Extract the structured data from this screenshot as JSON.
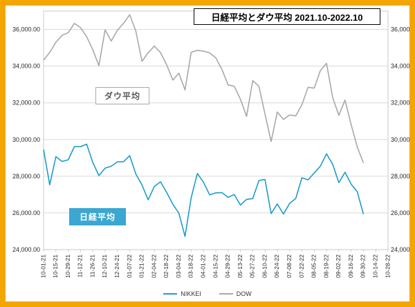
{
  "title": "日経平均とダウ平均 2021.10-2022.10",
  "series_labels": {
    "dow": "ダウ平均",
    "nikkei": "日経平均"
  },
  "colors": {
    "frame_border": "#F3A600",
    "nikkei_line": "#1E9CC8",
    "dow_line": "#A8A8A8",
    "nikkei_box_bg": "#3BA7D2",
    "nikkei_box_text": "#FFFFFF",
    "dow_box_text": "#595959",
    "dow_box_border": "#A8A8A8",
    "grid": "#D9D9D9",
    "plot_border": "#C9C9C9",
    "axis_text": "#262626"
  },
  "legend": {
    "items": [
      {
        "label": "NIKKEI",
        "color": "#1E9CC8"
      },
      {
        "label": "DOW",
        "color": "#A8A8A8"
      }
    ]
  },
  "chart_data": {
    "type": "line",
    "title": "日経平均とダウ平均 2021.10-2022.10",
    "xlabel": "",
    "ylabel": "",
    "grid": "horizontal",
    "legend_position": "bottom",
    "ylim": [
      24000,
      37000
    ],
    "y_ticks": [
      24000,
      26000,
      28000,
      30000,
      32000,
      34000,
      36000
    ],
    "y_tick_labels": [
      "24,000.00",
      "26,000.00",
      "28,000.00",
      "30,000.00",
      "32,000.00",
      "34,000.00",
      "36,000.00"
    ],
    "x_weeks_total": 56,
    "x_tick_labels": [
      "10-01-21",
      "10-15-21",
      "10-29-21",
      "11-12-21",
      "11-26-21",
      "12-10-21",
      "12-24-21",
      "01-07-22",
      "01-21-22",
      "02-04-22",
      "02-18-22",
      "03-04-22",
      "03-18-22",
      "04-01-22",
      "04-15-22",
      "04-29-22",
      "05-13-22",
      "05-27-22",
      "06-10-22",
      "06-24-22",
      "07-08-22",
      "07-22-22",
      "08-05-22",
      "08-19-22",
      "09-02-22",
      "09-16-22",
      "09-30-22",
      "10-14-22",
      "10-28-22"
    ],
    "series": [
      {
        "name": "NIKKEI",
        "color": "#1E9CC8",
        "values": [
          29452,
          27530,
          29069,
          28805,
          28893,
          29612,
          29610,
          29746,
          28752,
          28030,
          28438,
          28546,
          28783,
          28792,
          29121,
          28124,
          27522,
          26717,
          27440,
          27696,
          27122,
          26477,
          25985,
          24718,
          26827,
          28150,
          27666,
          26986,
          27093,
          27105,
          26848,
          27004,
          26428,
          26739,
          26782,
          27762,
          27824,
          25963,
          26492,
          25936,
          26517,
          26788,
          27915,
          27802,
          28176,
          28547,
          29222,
          28641,
          27651,
          28215,
          27568,
          27154,
          25937
        ]
      },
      {
        "name": "DOW",
        "color": "#A8A8A8",
        "values": [
          34326,
          34746,
          35295,
          35677,
          35820,
          36328,
          36100,
          35602,
          34899,
          34022,
          35971,
          35365,
          35950,
          36338,
          36799,
          35912,
          34265,
          34725,
          35090,
          34738,
          34079,
          33240,
          33615,
          32700,
          34755,
          34861,
          34818,
          34721,
          34451,
          33811,
          32977,
          32899,
          32197,
          31262,
          33213,
          32900,
          31393,
          29889,
          31500,
          31097,
          31338,
          31288,
          31899,
          32845,
          32803,
          33761,
          34152,
          32283,
          31318,
          32152,
          30822,
          29590,
          28726
        ]
      }
    ]
  }
}
